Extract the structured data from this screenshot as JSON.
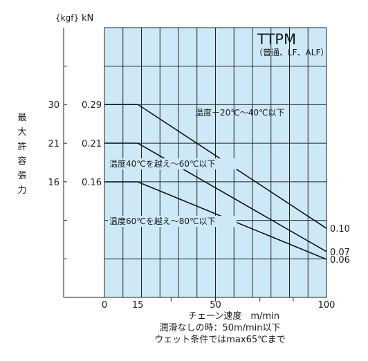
{
  "chart_data": {
    "type": "line",
    "title": "TTPM",
    "subtitle": "（普通、LF、ALF）",
    "ylabel": "最大許容張力",
    "yunit_kgf": "{kgf}",
    "yunit_kn": "kN",
    "xlabel": "チェーン速度　m/min",
    "xlim": [
      0,
      100
    ],
    "x_ticks": [
      "0",
      "15",
      "50",
      "100"
    ],
    "y_ticks": [
      {
        "kn": 0.29,
        "kn_label": "0.29",
        "kgf_label": "30"
      },
      {
        "kn": 0.21,
        "kn_label": "0.21",
        "kgf_label": "21"
      },
      {
        "kn": 0.16,
        "kn_label": "0.16",
        "kgf_label": "16"
      }
    ],
    "series": [
      {
        "name": "温度－20℃～40℃以下",
        "x": [
          0,
          15,
          100
        ],
        "y": [
          0.29,
          0.29,
          0.1
        ],
        "end_label": "0.10"
      },
      {
        "name": "温度40℃を越え～60℃以下",
        "x": [
          0,
          15,
          100
        ],
        "y": [
          0.21,
          0.21,
          0.07
        ],
        "end_label": "0.07"
      },
      {
        "name": "温度60℃を越え～80℃以下",
        "x": [
          0,
          15,
          100
        ],
        "y": [
          0.16,
          0.16,
          0.06
        ],
        "end_label": "0.06"
      }
    ],
    "notes": [
      "潤滑なしの時：50m/min以下",
      "ウェット条件ではmax65℃まで"
    ],
    "plot_color": "#cde9f7",
    "grid": true
  }
}
